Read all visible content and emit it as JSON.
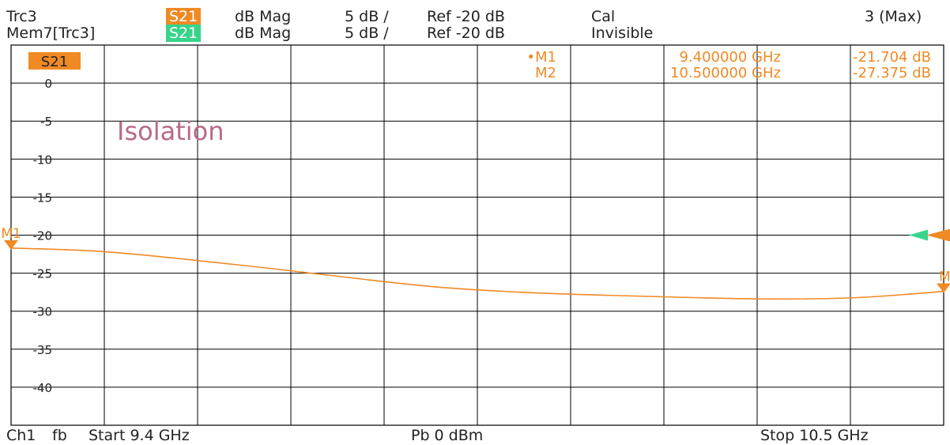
{
  "header": {
    "trace1": {
      "name": "Trc3",
      "param": "S21",
      "format": "dB Mag",
      "scale": "5 dB /",
      "ref": "Ref -20 dB",
      "status": "Cal",
      "right": "3 (Max)"
    },
    "trace2": {
      "name": "Mem7[Trc3]",
      "param": "S21",
      "format": "dB Mag",
      "scale": "5 dB /",
      "ref": "Ref -20 dB",
      "status": "Invisible"
    }
  },
  "colors": {
    "trace": "#f08a24",
    "memory": "#37d48a",
    "grid": "#000000",
    "annotation": "#b86a8a"
  },
  "footer": {
    "channel": "Ch1",
    "mode": "fb",
    "start": "Start  9.4 GHz",
    "power": "Pb   0 dBm",
    "stop": "Stop  10.5 GHz"
  },
  "chart_data": {
    "type": "line",
    "trace_label": "S21",
    "annotation": "Isolation",
    "xlim": [
      9.4,
      10.5
    ],
    "ylim": [
      -45,
      5
    ],
    "yticks": [
      0,
      -5,
      -10,
      -15,
      -20,
      -25,
      -30,
      -35,
      -40
    ],
    "ytick_labels": [
      "0",
      "-5",
      "-10",
      "-15",
      "-20",
      "-25",
      "-30",
      "-35",
      "-40"
    ],
    "ref_level": -20,
    "series": [
      {
        "name": "S21",
        "x": [
          9.4,
          9.5,
          9.6,
          9.7,
          9.8,
          9.9,
          10.0,
          10.1,
          10.2,
          10.3,
          10.4,
          10.5
        ],
        "y": [
          -21.7,
          -22.1,
          -23.1,
          -24.3,
          -25.6,
          -26.8,
          -27.5,
          -27.9,
          -28.2,
          -28.4,
          -28.2,
          -27.4
        ]
      }
    ],
    "markers": [
      {
        "label": "M1",
        "mark": "•M1",
        "freq": "9.400000 GHz",
        "value": "-21.704 dB",
        "x": 9.4,
        "y": -21.704
      },
      {
        "label": "M2",
        "mark": "M2",
        "freq": "10.500000 GHz",
        "value": "-27.375 dB",
        "x": 10.5,
        "y": -27.375
      }
    ]
  }
}
